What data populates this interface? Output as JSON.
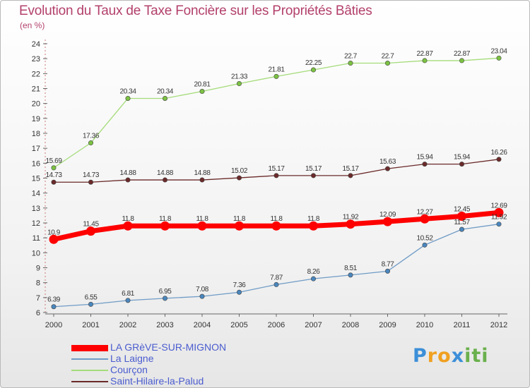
{
  "title": "Evolution du Taux de Taxe Foncière sur les Propriétés Bâties",
  "unit_label": "(en %)",
  "logo": {
    "letters": [
      "P",
      "r",
      "o",
      "x",
      "i",
      "t",
      "i"
    ],
    "colors": [
      "#3c8fd8",
      "#f0a020",
      "#f0a020",
      "#3c8fd8",
      "#6ab04c",
      "#6ab04c",
      "#6ab04c"
    ]
  },
  "chart_data": {
    "type": "line",
    "x": [
      "2000",
      "2001",
      "2002",
      "2003",
      "2004",
      "2005",
      "2006",
      "2007",
      "2008",
      "2009",
      "2010",
      "2011",
      "2012"
    ],
    "ylim": [
      6,
      24
    ],
    "yticks": [
      6,
      7,
      8,
      9,
      10,
      11,
      12,
      13,
      14,
      15,
      16,
      17,
      18,
      19,
      20,
      21,
      22,
      23,
      24
    ],
    "grid": false,
    "legend_position": "bottom-left",
    "series": [
      {
        "name": "LA GRèVE-SUR-MIGNON",
        "color": "#ff0000",
        "marker": "#ff0000",
        "width": 7,
        "values": [
          10.9,
          11.45,
          11.8,
          11.8,
          11.8,
          11.8,
          11.8,
          11.8,
          11.92,
          12.09,
          12.27,
          12.45,
          12.69
        ],
        "labels": [
          "10.9",
          "11.45",
          "11.8",
          "11.8",
          "11.8",
          "11.8",
          "11.8",
          "11.8",
          "11.92",
          "12.09",
          "12.27",
          "12.45",
          "12.69"
        ]
      },
      {
        "name": "La Laigne",
        "color": "#6f9bc6",
        "marker": "#4a86bd",
        "width": 1.3,
        "values": [
          6.39,
          6.55,
          6.81,
          6.95,
          7.08,
          7.36,
          7.87,
          8.26,
          8.51,
          8.77,
          10.52,
          11.57,
          11.92
        ],
        "labels": [
          "6.39",
          "6.55",
          "6.81",
          "6.95",
          "7.08",
          "7.36",
          "7.87",
          "8.26",
          "8.51",
          "8.77",
          "10.52",
          "11.57",
          "11.92"
        ]
      },
      {
        "name": "Courçon",
        "color": "#a5dc7a",
        "marker": "#7cc242",
        "width": 1.3,
        "values": [
          15.69,
          17.36,
          20.34,
          20.34,
          20.81,
          21.33,
          21.81,
          22.25,
          22.7,
          22.7,
          22.87,
          22.87,
          23.04
        ],
        "labels": [
          "15.69",
          "17.36",
          "20.34",
          "20.34",
          "20.81",
          "21.33",
          "21.81",
          "22.25",
          "22.7",
          "22.7",
          "22.87",
          "22.87",
          "23.04"
        ]
      },
      {
        "name": "Saint-Hilaire-la-Palud",
        "color": "#6b2a2a",
        "marker": "#6b2a2a",
        "width": 1.3,
        "values": [
          14.73,
          14.73,
          14.88,
          14.88,
          14.88,
          15.02,
          15.17,
          15.17,
          15.17,
          15.63,
          15.94,
          15.94,
          16.26
        ],
        "labels": [
          "14.73",
          "14.73",
          "14.88",
          "14.88",
          "14.88",
          "15.02",
          "15.17",
          "15.17",
          "15.17",
          "15.63",
          "15.94",
          "15.94",
          "16.26"
        ]
      }
    ]
  }
}
